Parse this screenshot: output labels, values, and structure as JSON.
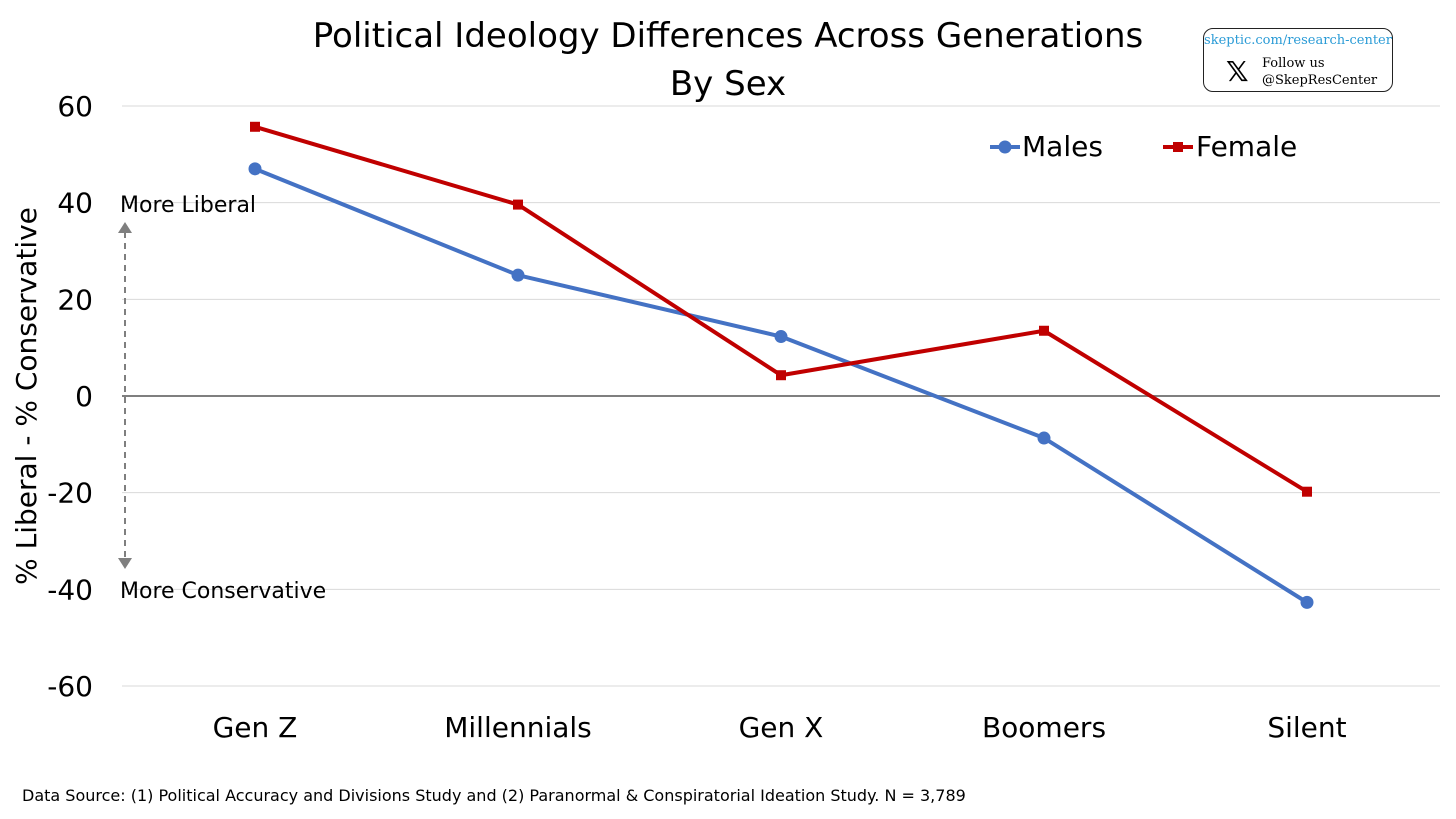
{
  "header": {
    "title": "Political Ideology Differences Across Generations",
    "subtitle": "By Sex"
  },
  "badge": {
    "url": "skeptic.com/research-center",
    "x_icon": "x-logo-icon",
    "follow_label": "Follow us",
    "handle": "@SkepResCenter"
  },
  "footer": {
    "source": "Data Source: (1) Political Accuracy and Divisions Study and (2) Paranormal & Conspiratorial Ideation Study. N = 3,789"
  },
  "chart_data": {
    "type": "line",
    "title": "Political Ideology Differences Across Generations",
    "subtitle": "By Sex",
    "xlabel": "",
    "ylabel": "% Liberal - % Conservative",
    "ylim": [
      -60,
      60
    ],
    "yticks": [
      60,
      40,
      20,
      0,
      -20,
      -40,
      -60
    ],
    "ytick_labels": [
      "60",
      "40",
      "20",
      "0",
      "-20",
      "-40",
      "-60"
    ],
    "categories": [
      "Gen Z",
      "Millennials",
      "Gen X",
      "Boomers",
      "Silent"
    ],
    "grid": true,
    "legend_position": "top-right",
    "annotations": {
      "top": "More Liberal",
      "bottom": "More Conservative"
    },
    "series": [
      {
        "name": "Males",
        "color": "#4472C4",
        "marker": "circle",
        "values": [
          47,
          25,
          12.3,
          -8.7,
          -42.7
        ]
      },
      {
        "name": "Female",
        "color": "#C00000",
        "marker": "square",
        "values": [
          55.7,
          39.6,
          4.3,
          13.5,
          -19.8
        ]
      }
    ]
  }
}
